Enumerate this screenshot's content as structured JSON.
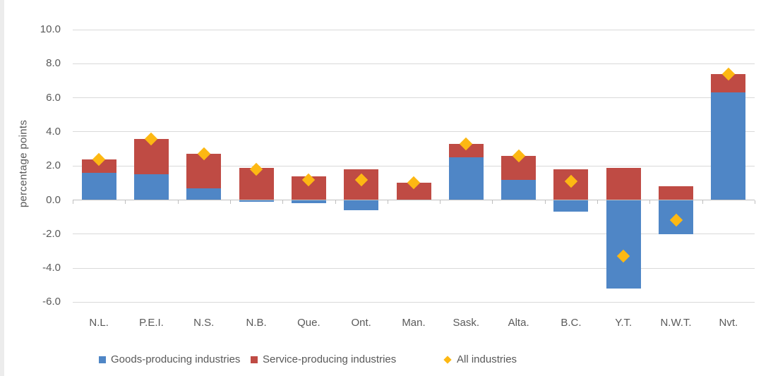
{
  "style": {
    "background": "#ffffff",
    "text_color": "#595959",
    "gridline_color": "#d9d9d9",
    "axis_line_color": "#bfbfbf"
  },
  "chart_data": {
    "type": "bar",
    "stacked": true,
    "title": "",
    "ylabel": "percentage points",
    "xlabel": "",
    "categories": [
      "N.L.",
      "P.E.I.",
      "N.S.",
      "N.B.",
      "Que.",
      "Ont.",
      "Man.",
      "Sask.",
      "Alta.",
      "B.C.",
      "Y.T.",
      "N.W.T.",
      "Nvt."
    ],
    "series": [
      {
        "name": "Goods-producing industries",
        "type": "bar",
        "color": "#4f86c6",
        "values": [
          1.6,
          1.5,
          0.7,
          -0.1,
          -0.2,
          -0.6,
          0.0,
          2.5,
          1.2,
          -0.7,
          -5.2,
          -2.0,
          6.3
        ]
      },
      {
        "name": "Service-producing industries",
        "type": "bar",
        "color": "#bf4b44",
        "values": [
          0.8,
          2.1,
          2.0,
          1.9,
          1.4,
          1.8,
          1.0,
          0.8,
          1.4,
          1.8,
          1.9,
          0.8,
          1.1
        ]
      },
      {
        "name": "All industries",
        "type": "scatter",
        "marker": "diamond",
        "color": "#fdb813",
        "values": [
          2.4,
          3.6,
          2.7,
          1.8,
          1.2,
          1.2,
          1.0,
          3.3,
          2.6,
          1.1,
          -3.3,
          -1.2,
          7.4
        ]
      }
    ],
    "ylim": [
      -6.0,
      10.0
    ],
    "ytick_step": 2.0,
    "y_ticks": [
      "10.0",
      "8.0",
      "6.0",
      "4.0",
      "2.0",
      "0.0",
      "-2.0",
      "-4.0",
      "-6.0"
    ],
    "grid": true,
    "legend_position": "bottom"
  }
}
